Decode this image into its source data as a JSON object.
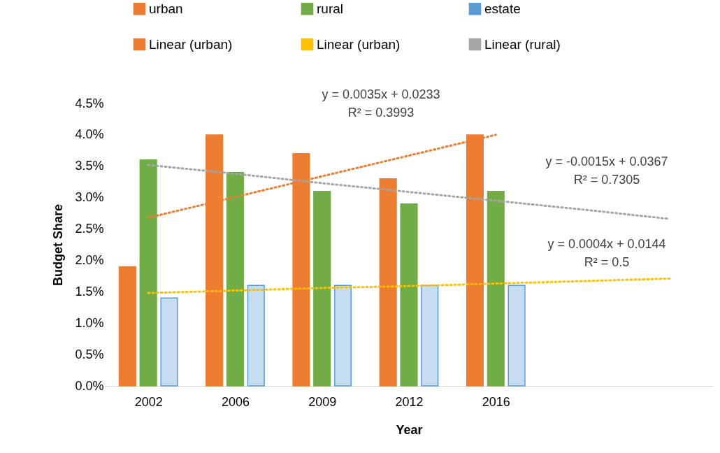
{
  "chart_data": {
    "type": "bar",
    "xlabel": "Year",
    "ylabel": "Budget Share",
    "categories": [
      "2002",
      "2006",
      "2009",
      "2012",
      "2016",
      null,
      null
    ],
    "ylim": [
      0,
      4.5
    ],
    "yticks": [
      {
        "value": 0,
        "label": "0.0%"
      },
      {
        "value": 0.5,
        "label": "0.5%"
      },
      {
        "value": 1,
        "label": "1.0%"
      },
      {
        "value": 1.5,
        "label": "1.5%"
      },
      {
        "value": 2,
        "label": "2.0%"
      },
      {
        "value": 2.5,
        "label": "2.5%"
      },
      {
        "value": 3,
        "label": "3.0%"
      },
      {
        "value": 3.5,
        "label": "3.5%"
      },
      {
        "value": 4,
        "label": "4.0%"
      },
      {
        "value": 4.5,
        "label": "4.5%"
      }
    ],
    "grid": false,
    "legend": "top",
    "series": [
      {
        "name": "urban",
        "color": "#ed7d31",
        "values": [
          1.9,
          4.0,
          3.7,
          3.3,
          4.0,
          null,
          null
        ]
      },
      {
        "name": "rural",
        "color": "#70ad47",
        "values": [
          3.6,
          3.4,
          3.1,
          2.9,
          3.1,
          null,
          null
        ]
      },
      {
        "name": "estate",
        "color": "#5b9bd5",
        "values": [
          1.4,
          1.6,
          1.6,
          1.6,
          1.6,
          null,
          null
        ]
      },
      {
        "name": "Linear (urban)",
        "type": "line",
        "line_style": "dotted",
        "color": "#ed7d31",
        "values": [
          2.68,
          3.01,
          3.34,
          3.67,
          4.0,
          null,
          null
        ]
      },
      {
        "name": "Linear (urban)",
        "type": "line",
        "line_style": "dotted",
        "color": "#ffc000",
        "values": [
          1.48,
          1.52,
          1.56,
          1.59,
          1.63,
          1.67,
          1.71
        ]
      },
      {
        "name": "Linear (rural)",
        "type": "line",
        "line_style": "dotted",
        "color": "#a5a5a5",
        "values": [
          3.52,
          3.38,
          3.23,
          3.09,
          2.95,
          2.81,
          2.66
        ]
      }
    ],
    "annotations": [
      "y = 0.0035x + 0.0233\nR² = 0.3993",
      "y = -0.0015x + 0.0367\nR² = 0.7305",
      "y = 0.0004x + 0.0144\nR² = 0.5"
    ]
  }
}
